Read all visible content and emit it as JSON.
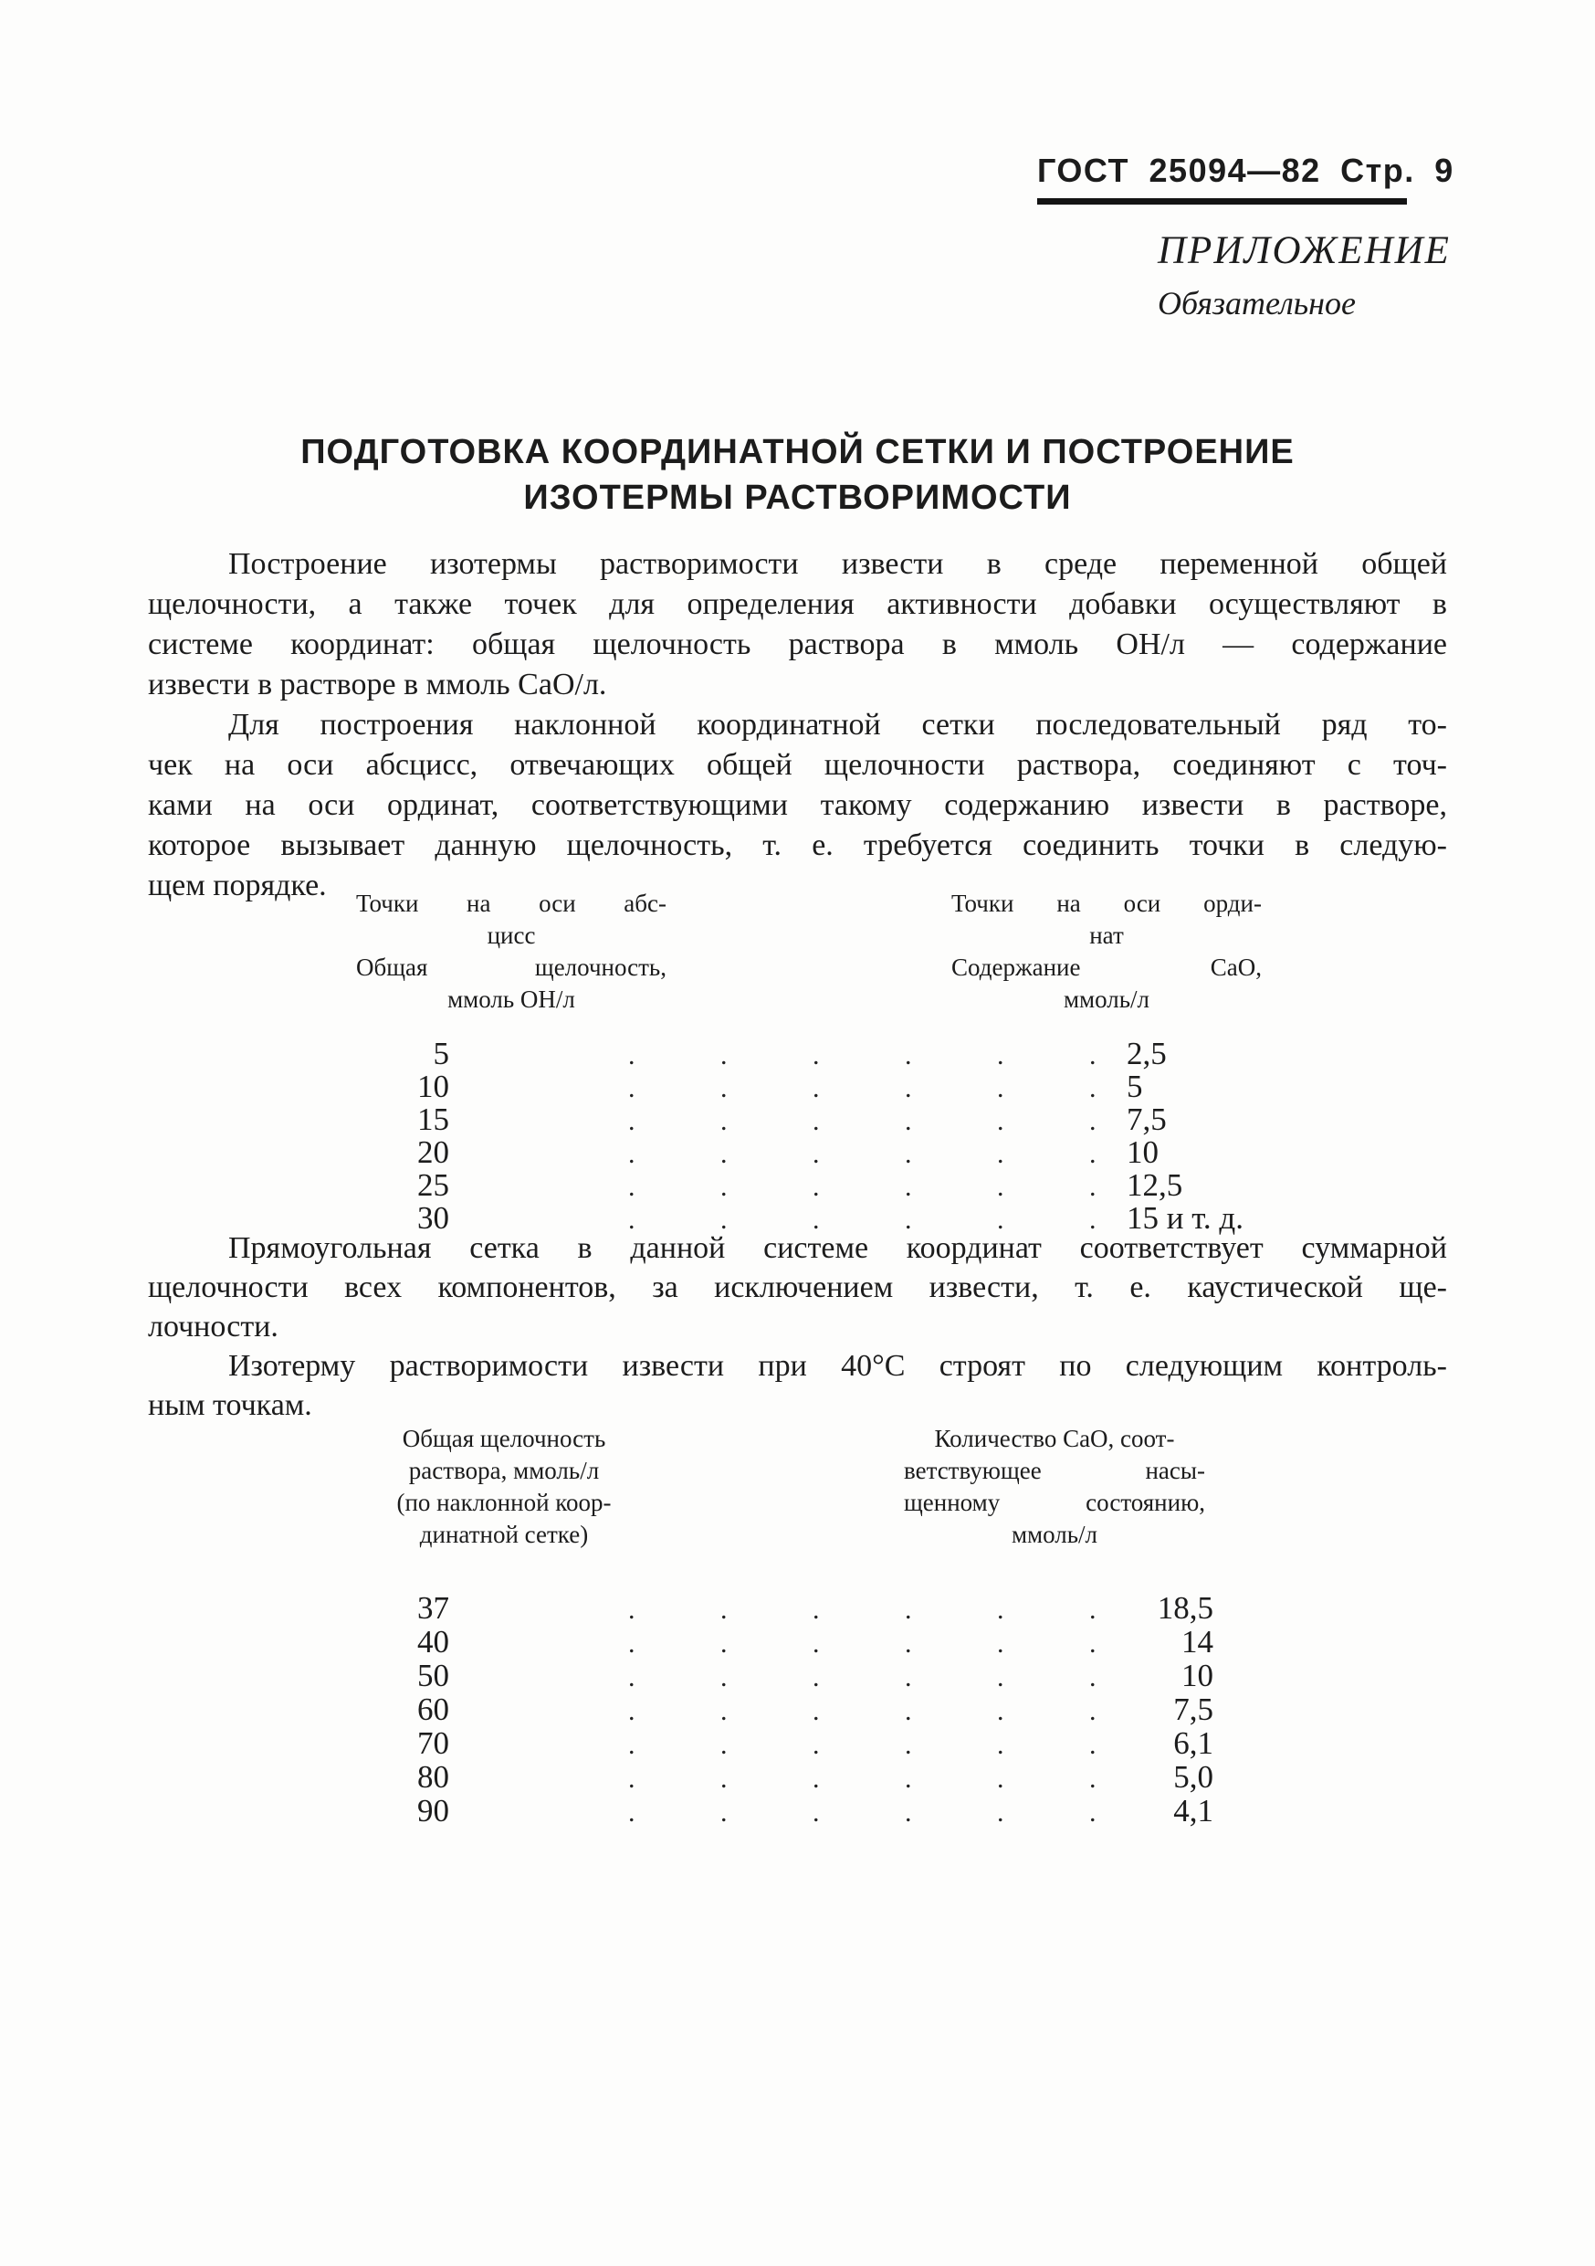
{
  "document": {
    "header": {
      "text": "ГОСТ 25094—82 Стр. 9"
    },
    "appendix": {
      "title": "ПРИЛОЖЕНИЕ",
      "subtitle": "Обязательное"
    },
    "title": {
      "line1": "ПОДГОТОВКА КООРДИНАТНОЙ СЕТКИ И ПОСТРОЕНИЕ",
      "line2": "ИЗОТЕРМЫ РАСТВОРИМОСТИ"
    },
    "paragraphs": {
      "p1": {
        "lines": [
          "Построение изотермы растворимости извести в среде переменной общей",
          "щелочности, а также точек для определения активности добавки осуществляют в",
          "системе координат: общая щелочность раствора в ммоль ОН/л — содержание",
          "извести в растворе в ммоль СаО/л."
        ]
      },
      "p2": {
        "lines": [
          "Для построения наклонной координатной сетки последовательный ряд то-",
          "чек на оси абсцисс, отвечающих общей щелочности раствора, соединяют с точ-",
          "ками на оси ординат, соответствующими такому содержанию извести в растворе,",
          "которое вызывает данную щелочность, т. е. требуется соединить точки в следую-",
          "щем порядке."
        ]
      },
      "p3": {
        "lines": [
          "Прямоугольная сетка в данной системе координат соответствует суммарной",
          "щелочности всех компонентов, за исключением извести, т. е. каустической ще-",
          "лочности."
        ]
      },
      "p4": {
        "lines": [
          "Изотерму растворимости извести при 40°С строят по следующим контроль-",
          "ным точкам."
        ]
      }
    },
    "leader": ". . . . . .",
    "table1": {
      "left_header": [
        "Точки на оси абс-",
        "цисс",
        "Общая щелочность,",
        "ммоль ОН/л"
      ],
      "right_header": [
        "Точки на оси орди-",
        "нат",
        "Содержание СаО,",
        "ммоль/л"
      ],
      "rows": [
        {
          "x": "5",
          "y": "2,5"
        },
        {
          "x": "10",
          "y": "5"
        },
        {
          "x": "15",
          "y": "7,5"
        },
        {
          "x": "20",
          "y": "10"
        },
        {
          "x": "25",
          "y": "12,5"
        },
        {
          "x": "30",
          "y": "15 и т. д."
        }
      ]
    },
    "table2": {
      "left_header": [
        "Общая щелочность",
        "раствора, ммоль/л",
        "(по наклонной коор-",
        "динатной сетке)"
      ],
      "right_header": [
        "Количество СаО, соот-",
        "ветствующее насы-",
        "щенному состоянию,",
        "ммоль/л"
      ],
      "rows": [
        {
          "x": "37",
          "y": "18,5"
        },
        {
          "x": "40",
          "y": "14"
        },
        {
          "x": "50",
          "y": "10"
        },
        {
          "x": "60",
          "y": "7,5"
        },
        {
          "x": "70",
          "y": "6,1"
        },
        {
          "x": "80",
          "y": "5,0"
        },
        {
          "x": "90",
          "y": "4,1"
        }
      ]
    }
  }
}
